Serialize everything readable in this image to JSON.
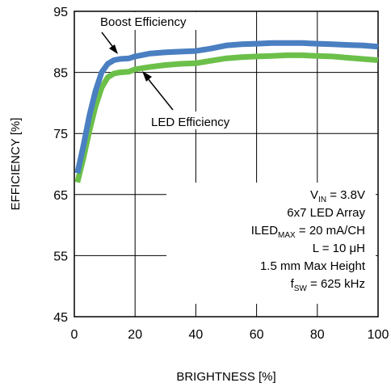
{
  "chart_data": {
    "type": "line",
    "xlabel": "BRIGHTNESS [%]",
    "ylabel": "EFFICIENCY [%]",
    "xlim": [
      0,
      100
    ],
    "ylim": [
      45,
      95
    ],
    "xticks": [
      "0",
      "20",
      "40",
      "60",
      "80",
      "100"
    ],
    "yticks": [
      "45",
      "55",
      "65",
      "75",
      "85",
      "95"
    ],
    "grid": true,
    "series": [
      {
        "name": "Boost Efficiency",
        "color": "#4a7fc1",
        "x": [
          1,
          3,
          5,
          7,
          9,
          11,
          13,
          15,
          18,
          20,
          25,
          30,
          35,
          40,
          45,
          50,
          55,
          60,
          65,
          70,
          75,
          80,
          85,
          90,
          95,
          100
        ],
        "y": [
          68.5,
          73,
          78,
          82,
          85,
          86.4,
          87,
          87.2,
          87.3,
          87.6,
          88.1,
          88.3,
          88.4,
          88.5,
          88.9,
          89.4,
          89.6,
          89.7,
          89.8,
          89.8,
          89.8,
          89.7,
          89.6,
          89.5,
          89.4,
          89.2
        ]
      },
      {
        "name": "LED Efficiency",
        "color": "#6cc04a",
        "x": [
          1,
          3,
          5,
          7,
          9,
          11,
          13,
          15,
          18,
          20,
          25,
          30,
          35,
          40,
          45,
          50,
          55,
          60,
          65,
          70,
          75,
          80,
          85,
          90,
          95,
          100
        ],
        "y": [
          67,
          71,
          75.5,
          79.5,
          82.5,
          84.2,
          84.8,
          85,
          85.1,
          85.5,
          85.9,
          86.2,
          86.4,
          86.5,
          86.9,
          87.3,
          87.5,
          87.6,
          87.7,
          87.8,
          87.8,
          87.7,
          87.6,
          87.4,
          87.2,
          87.0
        ]
      }
    ],
    "annotations": {
      "boost_label": "Boost Efficiency",
      "led_label": "LED Efficiency"
    },
    "conditions": {
      "vin_main": "V",
      "vin_sub": "IN",
      "vin_rest": " = 3.8V",
      "array": "6x7 LED Array",
      "iled_main": "ILED",
      "iled_sub": "MAX",
      "iled_rest": " = 20 mA/CH",
      "inductor": "L = 10 μH",
      "height": "1.5 mm Max Height",
      "fsw_main": "f",
      "fsw_sub": "SW",
      "fsw_rest": " = 625 kHz"
    }
  }
}
